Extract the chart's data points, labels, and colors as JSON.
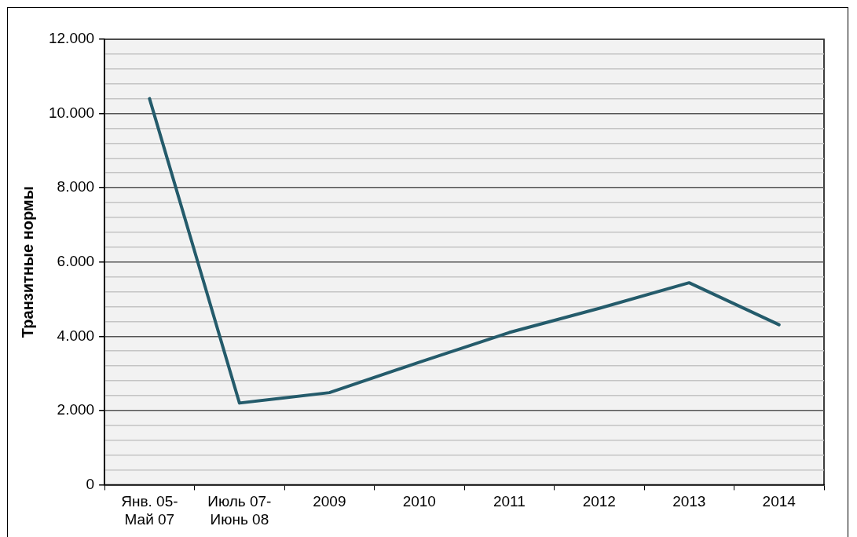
{
  "chart_data": {
    "type": "line",
    "ylabel": "Транзитные нормы",
    "categories": [
      "Янв. 05-\nМай 07",
      "Июль 07-\nИюнь 08",
      "2009",
      "2010",
      "2011",
      "2012",
      "2013",
      "2014"
    ],
    "series": [
      {
        "color": "#245b6b",
        "values": [
          10400,
          2200,
          2480,
          3300,
          4100,
          4750,
          5440,
          4310
        ]
      }
    ],
    "ylim": [
      0,
      12000
    ],
    "yticks": [
      0,
      {
        "value": 400,
        "label": null
      },
      {
        "value": 800,
        "label": null
      },
      {
        "value": 1200,
        "label": null
      },
      {
        "value": 1600,
        "label": null
      },
      {
        "value": 2000,
        "label": "2.000"
      },
      {
        "value": 2400,
        "label": null
      },
      {
        "value": 2800,
        "label": null
      },
      {
        "value": 3200,
        "label": null
      },
      {
        "value": 3600,
        "label": null
      },
      {
        "value": 4000,
        "label": "4.000"
      },
      {
        "value": 4400,
        "label": null
      },
      {
        "value": 4800,
        "label": null
      },
      {
        "value": 5200,
        "label": null
      },
      {
        "value": 5600,
        "label": null
      },
      {
        "value": 6000,
        "label": "6.000"
      },
      {
        "value": 6400,
        "label": null
      },
      {
        "value": 6800,
        "label": null
      },
      {
        "value": 7200,
        "label": null
      },
      {
        "value": 7600,
        "label": null
      },
      {
        "value": 8000,
        "label": "8.000"
      },
      {
        "value": 8400,
        "label": null
      },
      {
        "value": 8800,
        "label": null
      },
      {
        "value": 9200,
        "label": null
      },
      {
        "value": 9600,
        "label": null
      },
      {
        "value": 10000,
        "label": "10.000"
      },
      {
        "value": 10400,
        "label": null
      },
      {
        "value": 10800,
        "label": null
      },
      {
        "value": 11200,
        "label": null
      },
      {
        "value": 11600,
        "label": null
      },
      {
        "value": 12000,
        "label": "12.000"
      }
    ],
    "grid": "y",
    "legend": false,
    "marker": "none",
    "line_style": "solid"
  }
}
